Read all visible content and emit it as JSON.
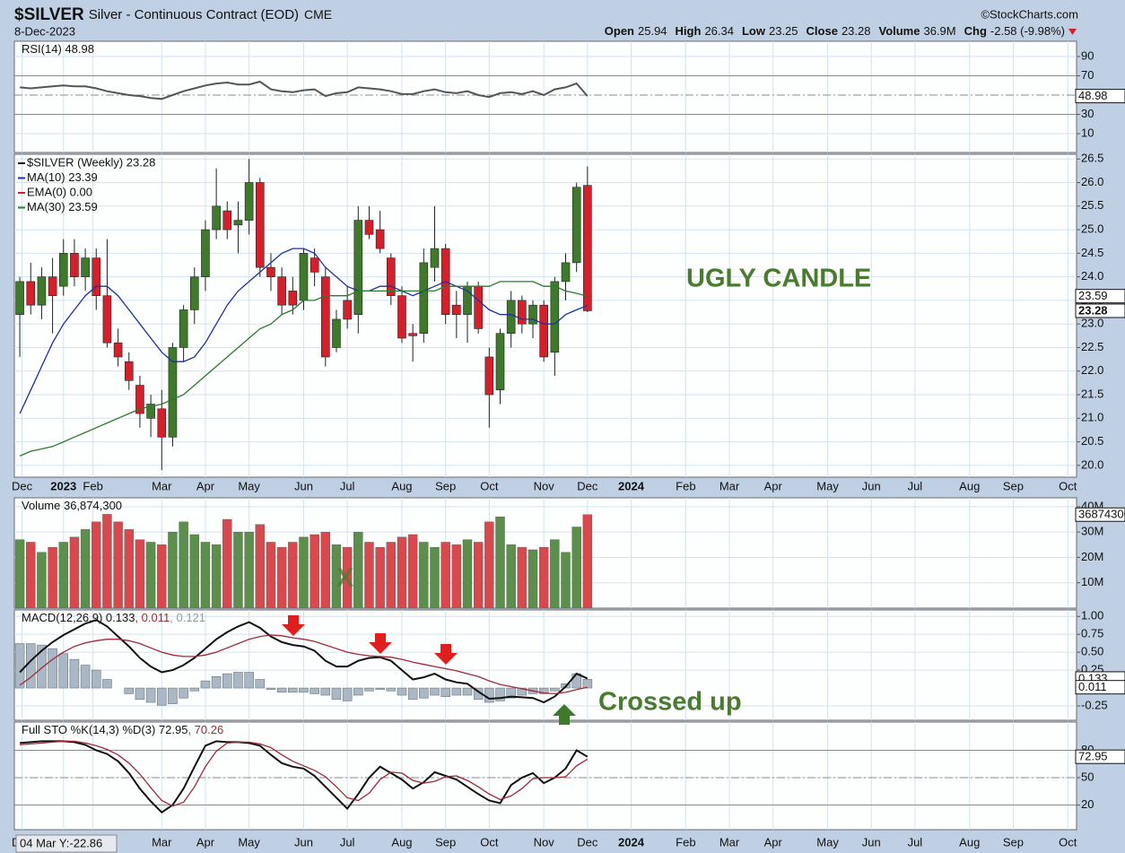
{
  "header": {
    "symbol": "$SILVER",
    "description": "Silver - Continuous Contract (EOD)",
    "exchange": "CME",
    "source": "©StockCharts.com",
    "date": "8-Dec-2023",
    "quote": [
      {
        "label": "Open",
        "value": 25.94
      },
      {
        "label": "High",
        "value": 26.34
      },
      {
        "label": "Low",
        "value": 23.25
      },
      {
        "label": "Close",
        "value": 23.28
      },
      {
        "label": "Volume",
        "value": "36.9M"
      },
      {
        "label": "Chg",
        "value": "-2.58 (-9.98%)"
      }
    ]
  },
  "crosshair": "04 Mar Y:-22.86",
  "x_axis": {
    "xlim": [
      -0.5,
      96.8
    ],
    "xticks": [
      {
        "value": 0.2,
        "label": "Dec"
      },
      {
        "value": 4,
        "label": "2023"
      },
      {
        "value": 6.7,
        "label": "Feb"
      },
      {
        "value": 13,
        "label": "Mar"
      },
      {
        "value": 17,
        "label": "Apr"
      },
      {
        "value": 21,
        "label": "May"
      },
      {
        "value": 26,
        "label": "Jun"
      },
      {
        "value": 30,
        "label": "Jul"
      },
      {
        "value": 35,
        "label": "Aug"
      },
      {
        "value": 39,
        "label": "Sep"
      },
      {
        "value": 43,
        "label": "Oct"
      },
      {
        "value": 48,
        "label": "Nov"
      },
      {
        "value": 52,
        "label": "Dec"
      },
      {
        "value": 56,
        "label": "2024"
      },
      {
        "value": 61,
        "label": "Feb"
      },
      {
        "value": 65,
        "label": "Mar"
      },
      {
        "value": 69,
        "label": "Apr"
      },
      {
        "value": 74,
        "label": "May"
      },
      {
        "value": 78,
        "label": "Jun"
      },
      {
        "value": 82,
        "label": "Jul"
      },
      {
        "value": 87,
        "label": "Aug"
      },
      {
        "value": 91,
        "label": "Sep"
      },
      {
        "value": 96,
        "label": "Oct"
      }
    ]
  },
  "chart_data": [
    {
      "type": "line",
      "legend": [
        {
          "text": "RSI(14) 48.98",
          "color": "#111111"
        }
      ],
      "ylim": [
        -9.5,
        105.8
      ],
      "yticks": [
        10,
        30,
        70,
        90
      ],
      "grid": true,
      "levels": [
        30,
        70
      ],
      "midline": 50,
      "series": [
        {
          "color": "#555555",
          "values": [
            58,
            57,
            58,
            59,
            60,
            59,
            59,
            57,
            54,
            52,
            50,
            49,
            47,
            46,
            50,
            54,
            57,
            60,
            62,
            63,
            61,
            61,
            64,
            56,
            54,
            53,
            55,
            56,
            49,
            52,
            53,
            58,
            57,
            56,
            54,
            51,
            51,
            54,
            56,
            53,
            52,
            54,
            50,
            48,
            52,
            53,
            51,
            54,
            50,
            56,
            58,
            62,
            48.98
          ]
        }
      ]
    },
    {
      "type": "candlestick",
      "up_color": "#3f7a2c",
      "down_color": "#d4202a",
      "ylim": [
        19.75,
        26.6
      ],
      "grid": true,
      "yticks": [
        {
          "value": 20,
          "label": "20.0"
        },
        20.5,
        {
          "value": 21,
          "label": "21.0"
        },
        21.5,
        {
          "value": 22,
          "label": "22.0"
        },
        22.5,
        {
          "value": 23,
          "label": "23.0"
        },
        23.5,
        {
          "value": 24,
          "label": "24.0"
        },
        24.5,
        {
          "value": 25,
          "label": "25.0"
        },
        25.5,
        {
          "value": 26,
          "label": "26.0"
        },
        26.5
      ],
      "legend": [
        {
          "text": "$SILVER (Weekly) 23.28",
          "color": "#111111"
        },
        {
          "text": "MA(10) 23.39",
          "color": "#1f2fa0"
        },
        {
          "text": "EMA(0) 0.00",
          "color": "#d4202a"
        },
        {
          "text": "MA(30) 23.59",
          "color": "#2d7a2d"
        }
      ],
      "annotation": "UGLY CANDLE",
      "open": [
        23.2,
        23.9,
        23.4,
        24.0,
        23.8,
        24.5,
        24.0,
        24.4,
        23.6,
        22.6,
        22.2,
        21.7,
        21.0,
        21.2,
        20.6,
        22.5,
        23.3,
        24.0,
        25.0,
        25.4,
        25.1,
        25.2,
        26.0,
        24.2,
        24.0,
        23.7,
        23.5,
        24.4,
        24.0,
        22.5,
        23.5,
        23.2,
        25.2,
        25.0,
        24.4,
        23.6,
        22.8,
        22.8,
        24.2,
        24.6,
        23.4,
        23.2,
        23.8,
        22.3,
        21.6,
        22.8,
        23.5,
        23.0,
        23.4,
        22.4,
        23.9,
        24.3,
        25.94
      ],
      "high": [
        24.0,
        24.3,
        24.2,
        24.4,
        24.8,
        24.8,
        24.6,
        24.6,
        24.8,
        22.9,
        22.4,
        21.9,
        21.5,
        21.6,
        22.6,
        23.4,
        24.2,
        25.2,
        26.3,
        25.6,
        25.6,
        26.5,
        26.1,
        24.5,
        24.2,
        24.0,
        24.6,
        24.6,
        24.2,
        23.3,
        23.8,
        25.5,
        25.5,
        25.4,
        24.5,
        23.8,
        23.0,
        24.6,
        25.5,
        24.7,
        23.7,
        23.9,
        23.9,
        22.5,
        22.9,
        23.7,
        23.6,
        23.5,
        23.5,
        24.0,
        24.5,
        26.0,
        26.34
      ],
      "low": [
        22.3,
        23.2,
        23.1,
        22.8,
        23.6,
        23.8,
        23.7,
        23.3,
        22.5,
        22.1,
        21.6,
        20.8,
        20.6,
        19.9,
        20.4,
        22.2,
        23.0,
        23.7,
        24.8,
        24.8,
        24.5,
        24.9,
        24.0,
        23.7,
        23.2,
        23.2,
        23.3,
        23.8,
        22.1,
        22.4,
        22.9,
        22.8,
        24.8,
        24.5,
        23.4,
        22.6,
        22.2,
        22.6,
        23.9,
        23.0,
        22.7,
        22.6,
        22.8,
        20.8,
        21.3,
        22.5,
        22.8,
        22.7,
        22.2,
        21.9,
        23.5,
        24.1,
        23.25
      ],
      "close": [
        23.9,
        23.4,
        24.0,
        23.6,
        24.5,
        24.0,
        24.4,
        23.6,
        22.6,
        22.3,
        21.8,
        21.1,
        21.3,
        20.6,
        22.5,
        23.3,
        24.0,
        25.0,
        25.5,
        25.0,
        25.2,
        26.0,
        24.2,
        24.0,
        23.4,
        23.4,
        24.5,
        24.1,
        22.3,
        23.1,
        23.1,
        25.2,
        24.9,
        24.6,
        23.6,
        22.7,
        22.75,
        24.3,
        24.6,
        23.2,
        23.2,
        23.8,
        22.9,
        21.5,
        22.8,
        23.5,
        23.0,
        23.4,
        22.3,
        23.9,
        24.3,
        25.9,
        23.28
      ],
      "series": [
        {
          "color": "#1f2fa0",
          "values": [
            21.1,
            21.6,
            22.1,
            22.6,
            23.0,
            23.3,
            23.6,
            23.8,
            23.8,
            23.6,
            23.3,
            23.0,
            22.7,
            22.4,
            22.2,
            22.2,
            22.3,
            22.6,
            23.0,
            23.4,
            23.7,
            23.9,
            24.1,
            24.3,
            24.5,
            24.6,
            24.6,
            24.5,
            24.2,
            24.0,
            23.8,
            23.7,
            23.7,
            23.8,
            23.8,
            23.7,
            23.6,
            23.7,
            23.8,
            23.9,
            23.8,
            23.7,
            23.5,
            23.3,
            23.2,
            23.2,
            23.1,
            23.1,
            23.0,
            23.0,
            23.2,
            23.3,
            23.39
          ]
        },
        {
          "color": "#2d7a2d",
          "values": [
            20.2,
            20.3,
            20.35,
            20.4,
            20.5,
            20.6,
            20.7,
            20.8,
            20.9,
            21.0,
            21.1,
            21.2,
            21.25,
            21.3,
            21.4,
            21.5,
            21.7,
            21.9,
            22.1,
            22.3,
            22.5,
            22.7,
            22.9,
            23.0,
            23.2,
            23.3,
            23.5,
            23.5,
            23.6,
            23.6,
            23.6,
            23.7,
            23.7,
            23.7,
            23.7,
            23.7,
            23.7,
            23.7,
            23.7,
            23.8,
            23.8,
            23.8,
            23.8,
            23.8,
            23.9,
            23.9,
            23.9,
            23.9,
            23.8,
            23.8,
            23.7,
            23.65,
            23.59
          ]
        }
      ]
    },
    {
      "type": "bar",
      "legend": [
        {
          "text": "Volume 36,874,300",
          "color": "#111111"
        }
      ],
      "up_color": "#5b8f4b",
      "down_color": "#d9484c",
      "ylim": [
        0,
        43500000
      ],
      "grid": true,
      "annotation": "X",
      "yticks": [
        {
          "value": 10000000,
          "label": "10M"
        },
        {
          "value": 20000000,
          "label": "20M"
        },
        {
          "value": 30000000,
          "label": "30M"
        },
        {
          "value": 40000000,
          "label": "40M"
        }
      ],
      "values": [
        27000000,
        26000000,
        22000000,
        24000000,
        26000000,
        28000000,
        31000000,
        34000000,
        37000000,
        34000000,
        31000000,
        27000000,
        26000000,
        25000000,
        30000000,
        34000000,
        29000000,
        26000000,
        25000000,
        35000000,
        30000000,
        30000000,
        33000000,
        26000000,
        24000000,
        26000000,
        28000000,
        29000000,
        30000000,
        25000000,
        24000000,
        30000000,
        26000000,
        24000000,
        26000000,
        28000000,
        29000000,
        26000000,
        24000000,
        26000000,
        25000000,
        27000000,
        26000000,
        34000000,
        36000000,
        25000000,
        24000000,
        23000000,
        24000000,
        27000000,
        22000000,
        32000000,
        36874300
      ]
    },
    {
      "type": "line",
      "legend": [
        {
          "text": "MACD(12,26,9) 0.133",
          "color": "#111111"
        },
        {
          "text": ", 0.011",
          "color": "#a02838"
        },
        {
          "text": ", 0.121",
          "color": "#8f9ca8"
        }
      ],
      "ylim": [
        -0.45,
        1.09
      ],
      "grid": true,
      "annotation": "Crossed up",
      "yticks": [
        {
          "value": 1,
          "label": "1.00"
        },
        0.75,
        {
          "value": 0.5,
          "label": "0.50"
        },
        0.25,
        -0.25
      ],
      "series": [
        {
          "color": "#111111",
          "values": [
            0.22,
            0.38,
            0.52,
            0.64,
            0.74,
            0.82,
            0.9,
            0.95,
            0.86,
            0.72,
            0.58,
            0.42,
            0.3,
            0.22,
            0.25,
            0.32,
            0.42,
            0.55,
            0.68,
            0.78,
            0.86,
            0.92,
            0.84,
            0.72,
            0.64,
            0.6,
            0.58,
            0.52,
            0.38,
            0.3,
            0.3,
            0.38,
            0.42,
            0.43,
            0.38,
            0.25,
            0.12,
            0.15,
            0.2,
            0.12,
            0.08,
            0.06,
            -0.05,
            -0.15,
            -0.14,
            -0.12,
            -0.13,
            -0.14,
            -0.2,
            -0.12,
            0.02,
            0.2,
            0.133
          ]
        },
        {
          "color": "#a02838",
          "values": [
            0.04,
            0.15,
            0.28,
            0.4,
            0.5,
            0.58,
            0.63,
            0.66,
            0.68,
            0.68,
            0.66,
            0.62,
            0.56,
            0.5,
            0.46,
            0.44,
            0.44,
            0.46,
            0.5,
            0.56,
            0.62,
            0.68,
            0.72,
            0.74,
            0.73,
            0.7,
            0.68,
            0.65,
            0.6,
            0.55,
            0.5,
            0.47,
            0.45,
            0.44,
            0.43,
            0.4,
            0.36,
            0.33,
            0.3,
            0.27,
            0.24,
            0.2,
            0.16,
            0.1,
            0.05,
            0.02,
            -0.01,
            -0.04,
            -0.07,
            -0.08,
            -0.06,
            -0.02,
            0.011
          ]
        },
        {
          "color": "#a9b8c4",
          "style": "histogram",
          "values": [
            0.62,
            0.62,
            0.6,
            0.55,
            0.48,
            0.4,
            0.32,
            0.25,
            0.12,
            0.0,
            -0.08,
            -0.16,
            -0.2,
            -0.24,
            -0.22,
            -0.14,
            -0.04,
            0.1,
            0.16,
            0.2,
            0.22,
            0.22,
            0.12,
            -0.02,
            -0.06,
            -0.06,
            -0.06,
            -0.08,
            -0.1,
            -0.16,
            -0.18,
            -0.1,
            -0.04,
            -0.02,
            -0.04,
            -0.1,
            -0.16,
            -0.14,
            -0.1,
            -0.12,
            -0.1,
            -0.1,
            -0.16,
            -0.2,
            -0.18,
            -0.14,
            -0.1,
            -0.08,
            -0.08,
            -0.04,
            0.06,
            0.2,
            0.121
          ]
        }
      ]
    },
    {
      "type": "line",
      "legend": [
        {
          "text": "Full STO %K(14,3) %D(3) 72.95",
          "color": "#111111"
        },
        {
          "text": ", 70.26",
          "color": "#a02838"
        }
      ],
      "ylim": [
        -7,
        111
      ],
      "yticks": [
        20,
        50,
        80
      ],
      "grid": true,
      "levels": [
        20,
        80
      ],
      "midline": 50,
      "series": [
        {
          "color": "#111111",
          "values": [
            88,
            89,
            90,
            90,
            90,
            89,
            86,
            80,
            76,
            68,
            55,
            38,
            24,
            12,
            20,
            38,
            62,
            85,
            90,
            89,
            89,
            88,
            85,
            75,
            66,
            62,
            60,
            52,
            40,
            28,
            16,
            32,
            50,
            62,
            55,
            48,
            38,
            45,
            56,
            52,
            48,
            40,
            32,
            25,
            22,
            42,
            50,
            55,
            44,
            50,
            60,
            80,
            72.95
          ]
        },
        {
          "color": "#a02838",
          "values": [
            86,
            87,
            88,
            89,
            90,
            90,
            88,
            85,
            81,
            75,
            66,
            54,
            39,
            25,
            19,
            23,
            40,
            62,
            79,
            88,
            89,
            89,
            87,
            83,
            75,
            68,
            63,
            58,
            51,
            40,
            28,
            25,
            33,
            48,
            56,
            55,
            47,
            44,
            46,
            51,
            52,
            47,
            40,
            32,
            26,
            30,
            38,
            49,
            50,
            50,
            51,
            63,
            70.26
          ]
        }
      ]
    }
  ]
}
